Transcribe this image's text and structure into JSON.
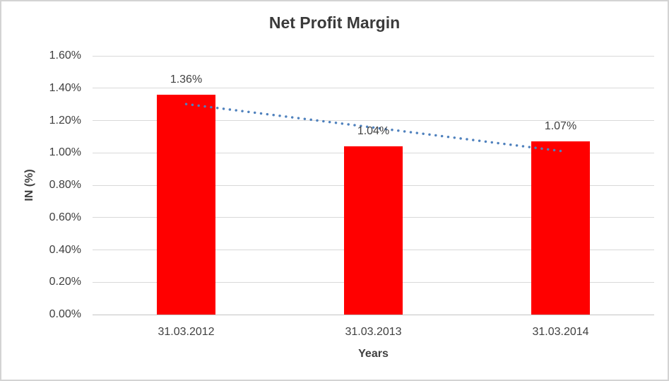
{
  "chart_data": {
    "type": "bar",
    "title": "Net Profit Margin",
    "xlabel": "Years",
    "ylabel": "IN (%)",
    "categories": [
      "31.03.2012",
      "31.03.2013",
      "31.03.2014"
    ],
    "values": [
      1.36,
      1.04,
      1.07
    ],
    "data_labels": [
      "1.36%",
      "1.04%",
      "1.07%"
    ],
    "ylim": [
      0,
      1.6
    ],
    "yticks": [
      "0.00%",
      "0.20%",
      "0.40%",
      "0.60%",
      "0.80%",
      "1.00%",
      "1.20%",
      "1.40%",
      "1.60%"
    ],
    "grid": true,
    "legend": "none",
    "trendline": {
      "type": "linear",
      "style": "dotted",
      "color": "#4f81bd",
      "span": "first-to-last-category-center"
    },
    "colors": {
      "bar": "#ff0000",
      "text": "#404040",
      "title_text": "#3a3a3a",
      "gridline": "#d9d9d9",
      "axis_line": "#c3c3c3",
      "background": "#ffffff",
      "border": "#d3d3d3"
    }
  }
}
